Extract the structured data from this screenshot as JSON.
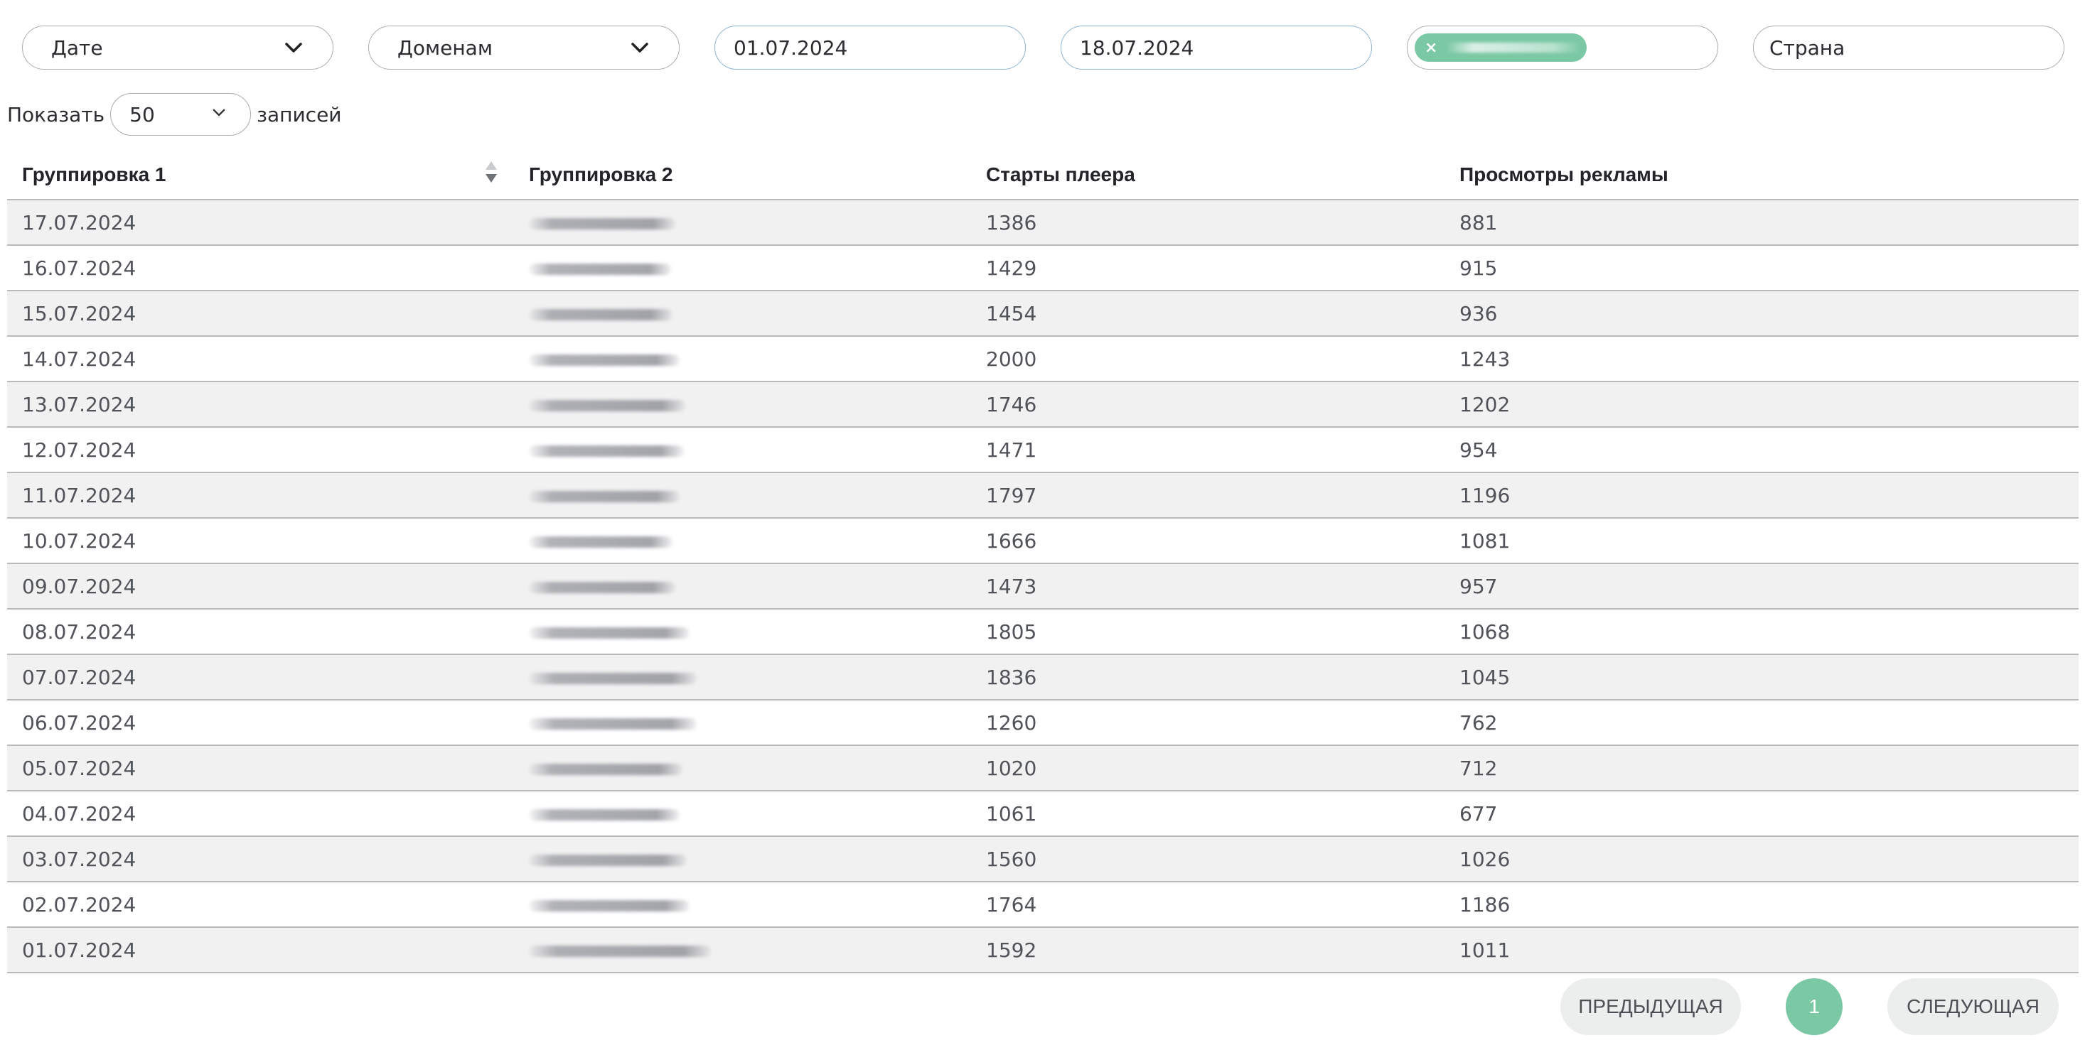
{
  "filters": {
    "group1": "Дате",
    "group2": "Доменам",
    "date_from": "01.07.2024",
    "date_to": "18.07.2024",
    "country_placeholder": "Страна"
  },
  "length": {
    "prefix": "Показать",
    "value": "50",
    "suffix": "записей"
  },
  "table": {
    "headers": [
      "Группировка 1",
      "Группировка 2",
      "Старты плеера",
      "Просмотры рекламы"
    ],
    "rows": [
      [
        "17.07.2024",
        "1386",
        "881"
      ],
      [
        "16.07.2024",
        "1429",
        "915"
      ],
      [
        "15.07.2024",
        "1454",
        "936"
      ],
      [
        "14.07.2024",
        "2000",
        "1243"
      ],
      [
        "13.07.2024",
        "1746",
        "1202"
      ],
      [
        "12.07.2024",
        "1471",
        "954"
      ],
      [
        "11.07.2024",
        "1797",
        "1196"
      ],
      [
        "10.07.2024",
        "1666",
        "1081"
      ],
      [
        "09.07.2024",
        "1473",
        "957"
      ],
      [
        "08.07.2024",
        "1805",
        "1068"
      ],
      [
        "07.07.2024",
        "1836",
        "1045"
      ],
      [
        "06.07.2024",
        "1260",
        "762"
      ],
      [
        "05.07.2024",
        "1020",
        "712"
      ],
      [
        "04.07.2024",
        "1061",
        "677"
      ],
      [
        "03.07.2024",
        "1560",
        "1026"
      ],
      [
        "02.07.2024",
        "1764",
        "1186"
      ],
      [
        "01.07.2024",
        "1592",
        "1011"
      ]
    ]
  },
  "pagination": {
    "prev": "ПРЕДЫДУЩАЯ",
    "current": "1",
    "next": "СЛЕДУЮЩАЯ"
  },
  "colors": {
    "accent": "#7bc8a4",
    "row_stripe": "#f1f1f1",
    "date_border": "#8fb2d2"
  }
}
